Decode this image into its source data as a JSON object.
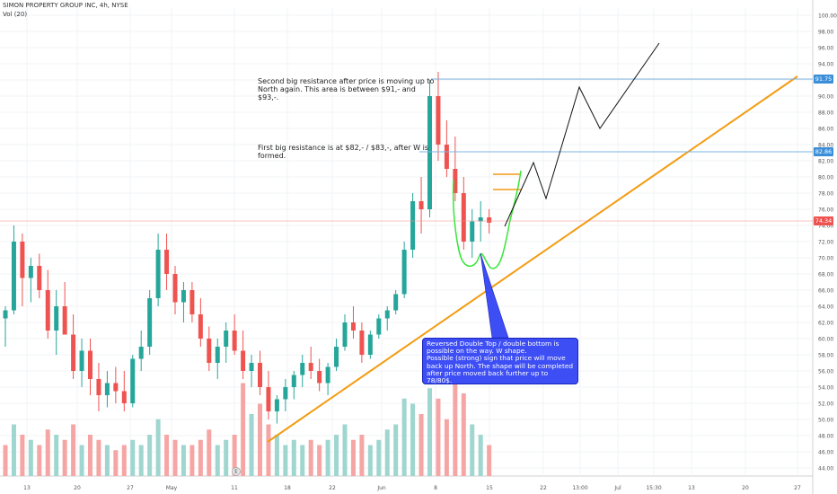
{
  "header": {
    "symbol_line": "SIMON PROPERTY GROUP INC, 4h, NYSE",
    "indicator_line": "Vol (20)"
  },
  "annotations": {
    "note_upper": "Second big resistance after price is moving up to North again. This area is between $91,- and $93,-.",
    "note_lower": "First big resistance is at $82,- / $83,-, after W is formed.",
    "callout": "Reversed Double Top / double bottom is possible on the way. W shape.\nPossible (strong) sign that price will move back up North. The shape will be completed after price moved back further up to 78/80$.",
    "event_marker": "E"
  },
  "price_tags": {
    "upper": "91.75",
    "lower": "82.86",
    "last": "74.34"
  },
  "colors": {
    "up_candle": "#26a69a",
    "down_candle": "#ef5350",
    "up_volume": "#9fd6cf",
    "down_volume": "#f5a6a4",
    "trendline": "#f39c12",
    "resistance": "#7cb4e0",
    "last_price_line": "#f48a87",
    "w_shape": "#39e639",
    "callout_bg": "#3d4ef5"
  },
  "chart_data": {
    "type": "candlestick",
    "title": "SIMON PROPERTY GROUP INC, 4h, NYSE",
    "ylim": [
      43,
      101
    ],
    "y_ticks": [
      "44.00",
      "46.00",
      "48.00",
      "50.00",
      "52.00",
      "54.00",
      "56.00",
      "58.00",
      "60.00",
      "62.00",
      "64.00",
      "66.00",
      "68.00",
      "70.00",
      "72.00",
      "74.00",
      "76.00",
      "78.00",
      "80.00",
      "82.00",
      "84.00",
      "86.00",
      "88.00",
      "90.00",
      "92.00",
      "94.00",
      "96.00",
      "98.00",
      "100.00"
    ],
    "x_ticks": [
      "13",
      "20",
      "27",
      "May",
      "11",
      "18",
      "22",
      "Jun",
      "8",
      "15",
      "22",
      "13:00",
      "Jul",
      "15:30",
      "13",
      "20",
      "27"
    ],
    "resistance_levels": [
      91.75,
      82.86
    ],
    "last_price": 74.34,
    "candles": [
      [
        62.5,
        64,
        59,
        63.5
      ],
      [
        63.5,
        74,
        63,
        72
      ],
      [
        72,
        73,
        64,
        67.5
      ],
      [
        67.5,
        70,
        64.5,
        69
      ],
      [
        69,
        70.5,
        65,
        66
      ],
      [
        66,
        68.5,
        60,
        61
      ],
      [
        61,
        66,
        58,
        64
      ],
      [
        64,
        67,
        61,
        60.5
      ],
      [
        60.5,
        63,
        55,
        56
      ],
      [
        56,
        60,
        54,
        58.5
      ],
      [
        58.5,
        60,
        53,
        55
      ],
      [
        55,
        57,
        51,
        53
      ],
      [
        53,
        56,
        51.5,
        54.5
      ],
      [
        54.5,
        56.5,
        52,
        53.5
      ],
      [
        53.5,
        56,
        51,
        52
      ],
      [
        52,
        58,
        51.5,
        57.5
      ],
      [
        57.5,
        61,
        56,
        59
      ],
      [
        59,
        66,
        58,
        65
      ],
      [
        65,
        73,
        64,
        71
      ],
      [
        71,
        73,
        66,
        68
      ],
      [
        68,
        69,
        63,
        64.5
      ],
      [
        64.5,
        67,
        62,
        66
      ],
      [
        66,
        67,
        62,
        63
      ],
      [
        63,
        65,
        59,
        60
      ],
      [
        60,
        61.5,
        56,
        57
      ],
      [
        57,
        60,
        55,
        59
      ],
      [
        59,
        62,
        57,
        61
      ],
      [
        61,
        63,
        58,
        58.5
      ],
      [
        58.5,
        61,
        55,
        56
      ],
      [
        56,
        58,
        54,
        57
      ],
      [
        57,
        58.5,
        53,
        54
      ],
      [
        54,
        56,
        50,
        51
      ],
      [
        51,
        53,
        49.5,
        52.5
      ],
      [
        52.5,
        55,
        51,
        54
      ],
      [
        54,
        56,
        52.5,
        55.5
      ],
      [
        55.5,
        58,
        54,
        57
      ],
      [
        57,
        59,
        55,
        56
      ],
      [
        56,
        57.5,
        53.5,
        54.5
      ],
      [
        54.5,
        57,
        53,
        56.5
      ],
      [
        56.5,
        60,
        56,
        59
      ],
      [
        59,
        63,
        58.5,
        62
      ],
      [
        62,
        64,
        60,
        61
      ],
      [
        61,
        62,
        57,
        58
      ],
      [
        58,
        61,
        57.5,
        60.5
      ],
      [
        60.5,
        63,
        60,
        62.5
      ],
      [
        62.5,
        64,
        61,
        63.5
      ],
      [
        63.5,
        66,
        63,
        65.5
      ],
      [
        65.5,
        72,
        65,
        71
      ],
      [
        71,
        78,
        70,
        77
      ],
      [
        77,
        80,
        73,
        76
      ],
      [
        76,
        92,
        75,
        90
      ],
      [
        90,
        93,
        82,
        84
      ],
      [
        84,
        87,
        80,
        81
      ],
      [
        81,
        85,
        77,
        78
      ],
      [
        78,
        80,
        71,
        72
      ],
      [
        72,
        76,
        70,
        74.5
      ],
      [
        74.5,
        77,
        72,
        75
      ],
      [
        75,
        76,
        73,
        74.34
      ]
    ],
    "volume": [
      {
        "dir": "down",
        "v": 0.3
      },
      {
        "dir": "up",
        "v": 0.5
      },
      {
        "dir": "down",
        "v": 0.4
      },
      {
        "dir": "up",
        "v": 0.35
      },
      {
        "dir": "down",
        "v": 0.3
      },
      {
        "dir": "down",
        "v": 0.45
      },
      {
        "dir": "up",
        "v": 0.4
      },
      {
        "dir": "down",
        "v": 0.35
      },
      {
        "dir": "down",
        "v": 0.5
      },
      {
        "dir": "up",
        "v": 0.3
      },
      {
        "dir": "down",
        "v": 0.4
      },
      {
        "dir": "down",
        "v": 0.35
      },
      {
        "dir": "up",
        "v": 0.3
      },
      {
        "dir": "down",
        "v": 0.25
      },
      {
        "dir": "down",
        "v": 0.3
      },
      {
        "dir": "up",
        "v": 0.35
      },
      {
        "dir": "up",
        "v": 0.3
      },
      {
        "dir": "up",
        "v": 0.4
      },
      {
        "dir": "up",
        "v": 0.55
      },
      {
        "dir": "down",
        "v": 0.4
      },
      {
        "dir": "down",
        "v": 0.35
      },
      {
        "dir": "up",
        "v": 0.3
      },
      {
        "dir": "down",
        "v": 0.3
      },
      {
        "dir": "down",
        "v": 0.35
      },
      {
        "dir": "down",
        "v": 0.45
      },
      {
        "dir": "up",
        "v": 0.3
      },
      {
        "dir": "up",
        "v": 0.35
      },
      {
        "dir": "down",
        "v": 0.4
      },
      {
        "dir": "down",
        "v": 0.9
      },
      {
        "dir": "up",
        "v": 0.6
      },
      {
        "dir": "down",
        "v": 0.7
      },
      {
        "dir": "down",
        "v": 0.5
      },
      {
        "dir": "up",
        "v": 0.4
      },
      {
        "dir": "up",
        "v": 0.3
      },
      {
        "dir": "up",
        "v": 0.35
      },
      {
        "dir": "up",
        "v": 0.3
      },
      {
        "dir": "down",
        "v": 0.35
      },
      {
        "dir": "down",
        "v": 0.3
      },
      {
        "dir": "up",
        "v": 0.35
      },
      {
        "dir": "up",
        "v": 0.4
      },
      {
        "dir": "up",
        "v": 0.5
      },
      {
        "dir": "down",
        "v": 0.35
      },
      {
        "dir": "down",
        "v": 0.4
      },
      {
        "dir": "up",
        "v": 0.3
      },
      {
        "dir": "up",
        "v": 0.35
      },
      {
        "dir": "up",
        "v": 0.45
      },
      {
        "dir": "up",
        "v": 0.5
      },
      {
        "dir": "up",
        "v": 0.75
      },
      {
        "dir": "up",
        "v": 0.7
      },
      {
        "dir": "down",
        "v": 0.6
      },
      {
        "dir": "up",
        "v": 0.85
      },
      {
        "dir": "down",
        "v": 0.75
      },
      {
        "dir": "down",
        "v": 0.55
      },
      {
        "dir": "down",
        "v": 0.95
      },
      {
        "dir": "down",
        "v": 0.8
      },
      {
        "dir": "up",
        "v": 0.5
      },
      {
        "dir": "up",
        "v": 0.4
      },
      {
        "dir": "down",
        "v": 0.3
      }
    ]
  }
}
